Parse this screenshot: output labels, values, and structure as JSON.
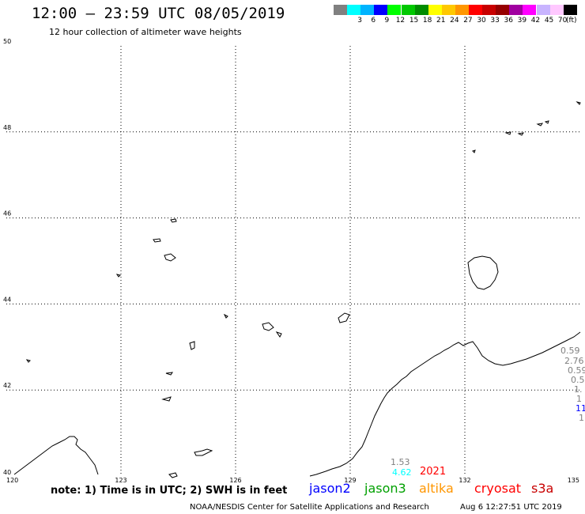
{
  "header": {
    "title": "12:00 – 23:59 UTC 08/05/2019",
    "subtitle": "12 hour collection of altimeter wave heights"
  },
  "legend": {
    "unit": "(ft)",
    "items": [
      {
        "label": "",
        "color": "#808080"
      },
      {
        "label": "3",
        "color": "#00ffff"
      },
      {
        "label": "6",
        "color": "#00b4ff"
      },
      {
        "label": "9",
        "color": "#0000ff"
      },
      {
        "label": "12",
        "color": "#00ff00"
      },
      {
        "label": "15",
        "color": "#00c800"
      },
      {
        "label": "18",
        "color": "#008c00"
      },
      {
        "label": "21",
        "color": "#ffff00"
      },
      {
        "label": "24",
        "color": "#ffc800"
      },
      {
        "label": "27",
        "color": "#ff9600"
      },
      {
        "label": "30",
        "color": "#ff0000"
      },
      {
        "label": "33",
        "color": "#c80000"
      },
      {
        "label": "36",
        "color": "#960000"
      },
      {
        "label": "39",
        "color": "#a000a0"
      },
      {
        "label": "42",
        "color": "#ff00ff"
      },
      {
        "label": "45",
        "color": "#c8b4ff"
      },
      {
        "label": "70",
        "color": "#ffc8ff"
      },
      {
        "label": "",
        "color": "#000000"
      }
    ]
  },
  "map": {
    "lon_range": [
      120,
      135
    ],
    "lat_range": [
      40,
      50
    ],
    "lon_ticks": [
      "120",
      "123",
      "126",
      "129",
      "132",
      "135"
    ],
    "lat_ticks": [
      "40",
      "42",
      "44",
      "46",
      "48",
      "50"
    ],
    "grid": "dotted"
  },
  "observations": [
    {
      "value": "1.53",
      "color": "#808080"
    },
    {
      "value": "4.62",
      "color": "#00ffff"
    },
    {
      "value": "2021",
      "color": "#ff0000"
    },
    {
      "value": "0.59",
      "color": "#808080"
    },
    {
      "value": "2.76",
      "color": "#808080"
    },
    {
      "value": "0.59",
      "color": "#808080"
    },
    {
      "value": "0.5",
      "color": "#808080"
    },
    {
      "value": "1.",
      "color": "#808080"
    },
    {
      "value": "1",
      "color": "#808080"
    },
    {
      "value": "11",
      "color": "#0000ff"
    },
    {
      "value": "1",
      "color": "#808080"
    }
  ],
  "footer": {
    "note": "note: 1) Time is in UTC; 2) SWH is in feet",
    "satellites": [
      {
        "name": "jason2",
        "color": "#0000ff"
      },
      {
        "name": "jason3",
        "color": "#00a000"
      },
      {
        "name": "altika",
        "color": "#ff9600"
      },
      {
        "name": "cryosat",
        "color": "#ff0000"
      },
      {
        "name": "s3a",
        "color": "#c80000"
      }
    ],
    "credit": "NOAA/NESDIS Center for Satellite Applications and Research",
    "timestamp": "Aug  6 12:27:51 UTC 2019"
  }
}
